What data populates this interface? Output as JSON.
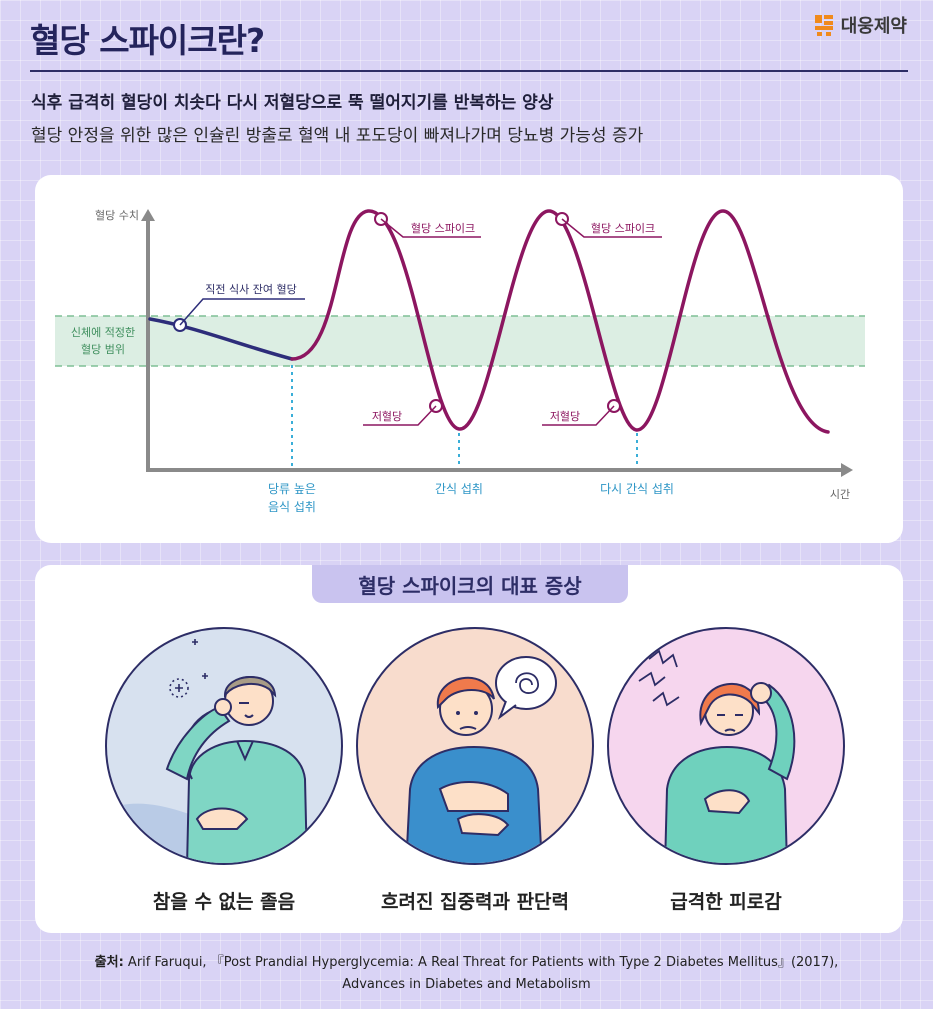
{
  "header": {
    "title": "혈당 스파이크란?",
    "brand": "대웅제약",
    "subtitle_bold": "식후 급격히 혈당이 치솟다 다시 저혈당으로 뚝 떨어지기를 반복하는 양상",
    "subtitle": "혈당 안정을 위한 많은 인슐린 방출로 혈액 내 포도당이 빠져나가며 당뇨병 가능성 증가"
  },
  "graph": {
    "y_axis_label": "혈당 수치",
    "x_axis_label": "시간",
    "normal_range_label_line1": "신체에 적정한",
    "normal_range_label_line2": "혈당 범위",
    "annotation_premeal": "직전 식사 잔여 혈당",
    "annotation_spike_1": "혈당 스파이크",
    "annotation_spike_2": "혈당 스파이크",
    "annotation_low_1": "저혈당",
    "annotation_low_2": "저혈당",
    "event_1_line1": "당류 높은",
    "event_1_line2": "음식 섭취",
    "event_2": "간식 섭취",
    "event_3": "다시 간식 섭취",
    "colors": {
      "spike_curve": "#8c1660",
      "baseline_curve": "#2d2d7a",
      "normal_range": "#dceee3",
      "range_label": "#3f8f5e",
      "event_line": "#3aaed8"
    }
  },
  "symptoms": {
    "heading": "혈당 스파이크의 대표 증상",
    "items": [
      {
        "label": "참을 수 없는 졸음",
        "icon": "drowsy-person-icon",
        "bg": "#d7e1ef"
      },
      {
        "label": "흐려진 집중력과 판단력",
        "icon": "confused-person-icon",
        "bg": "#f8dccd"
      },
      {
        "label": "급격한 피로감",
        "icon": "fatigued-person-icon",
        "bg": "#f6d6ee"
      }
    ]
  },
  "source": {
    "prefix": "출처:",
    "line1": " Arif Faruqui, 『Post Prandial Hyperglycemia: A Real Threat for Patients with Type 2 Diabetes Mellitus』(2017),",
    "line2": "Advances in Diabetes and Metabolism"
  }
}
